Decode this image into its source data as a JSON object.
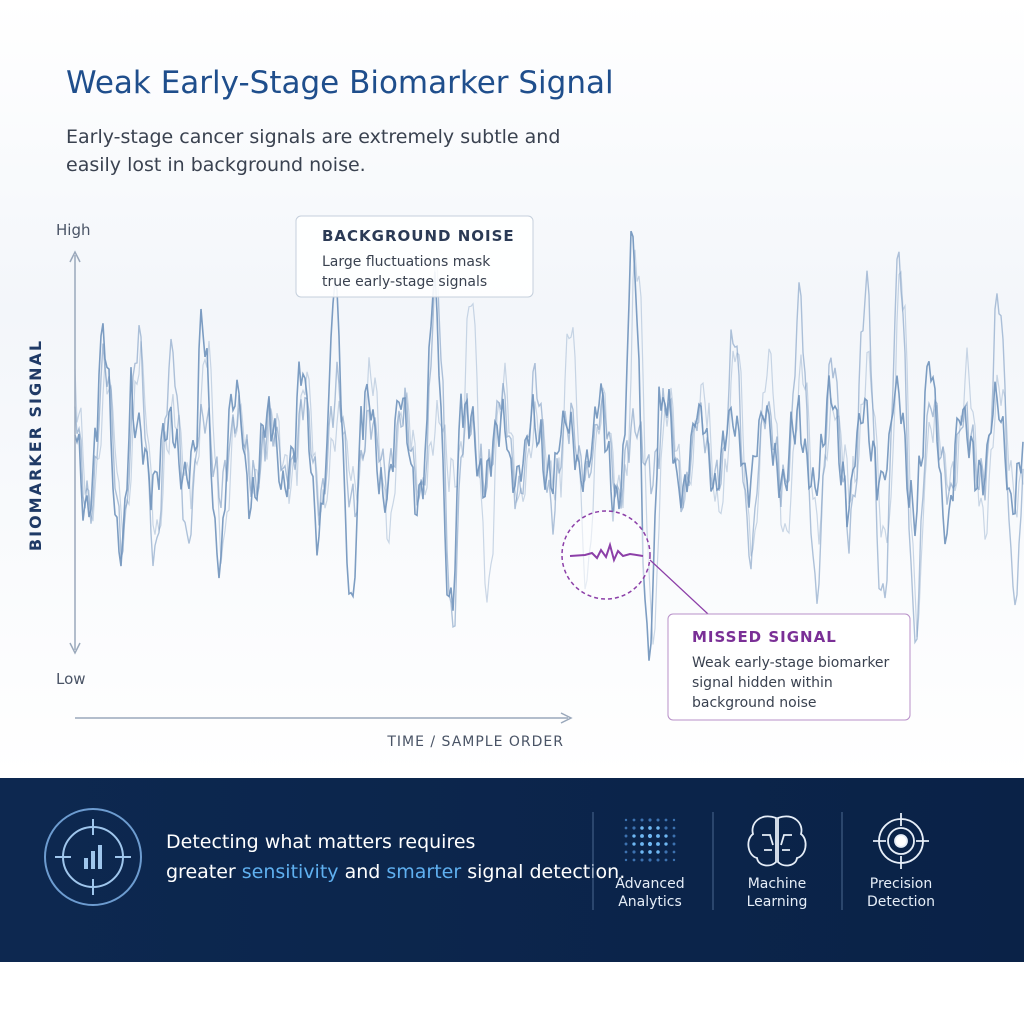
{
  "header": {
    "title": "Weak Early-Stage Biomarker Signal",
    "subtitle": [
      "Early-stage cancer signals are extremely subtle and",
      "easily lost in background noise."
    ]
  },
  "axes": {
    "y_label": "BIOMARKER SIGNAL",
    "y_high": "High",
    "y_low": "Low",
    "x_label": "TIME / SAMPLE ORDER"
  },
  "callouts": {
    "noise": {
      "title": "BACKGROUND NOISE",
      "lines": [
        "Large fluctuations mask",
        "true early-stage signals"
      ]
    },
    "missed": {
      "title": "MISSED SIGNAL",
      "lines": [
        "Weak early-stage biomarker",
        "signal hidden within",
        "background noise"
      ]
    }
  },
  "banner": {
    "line1": "Detecting what matters requires",
    "line2": [
      "greater ",
      "sensitivity",
      " and ",
      "smarter",
      " signal detection."
    ],
    "features": [
      {
        "lines": [
          "Advanced",
          "Analytics"
        ]
      },
      {
        "lines": [
          "Machine",
          "Learning"
        ]
      },
      {
        "lines": [
          "Precision",
          "Detection"
        ]
      }
    ]
  }
}
